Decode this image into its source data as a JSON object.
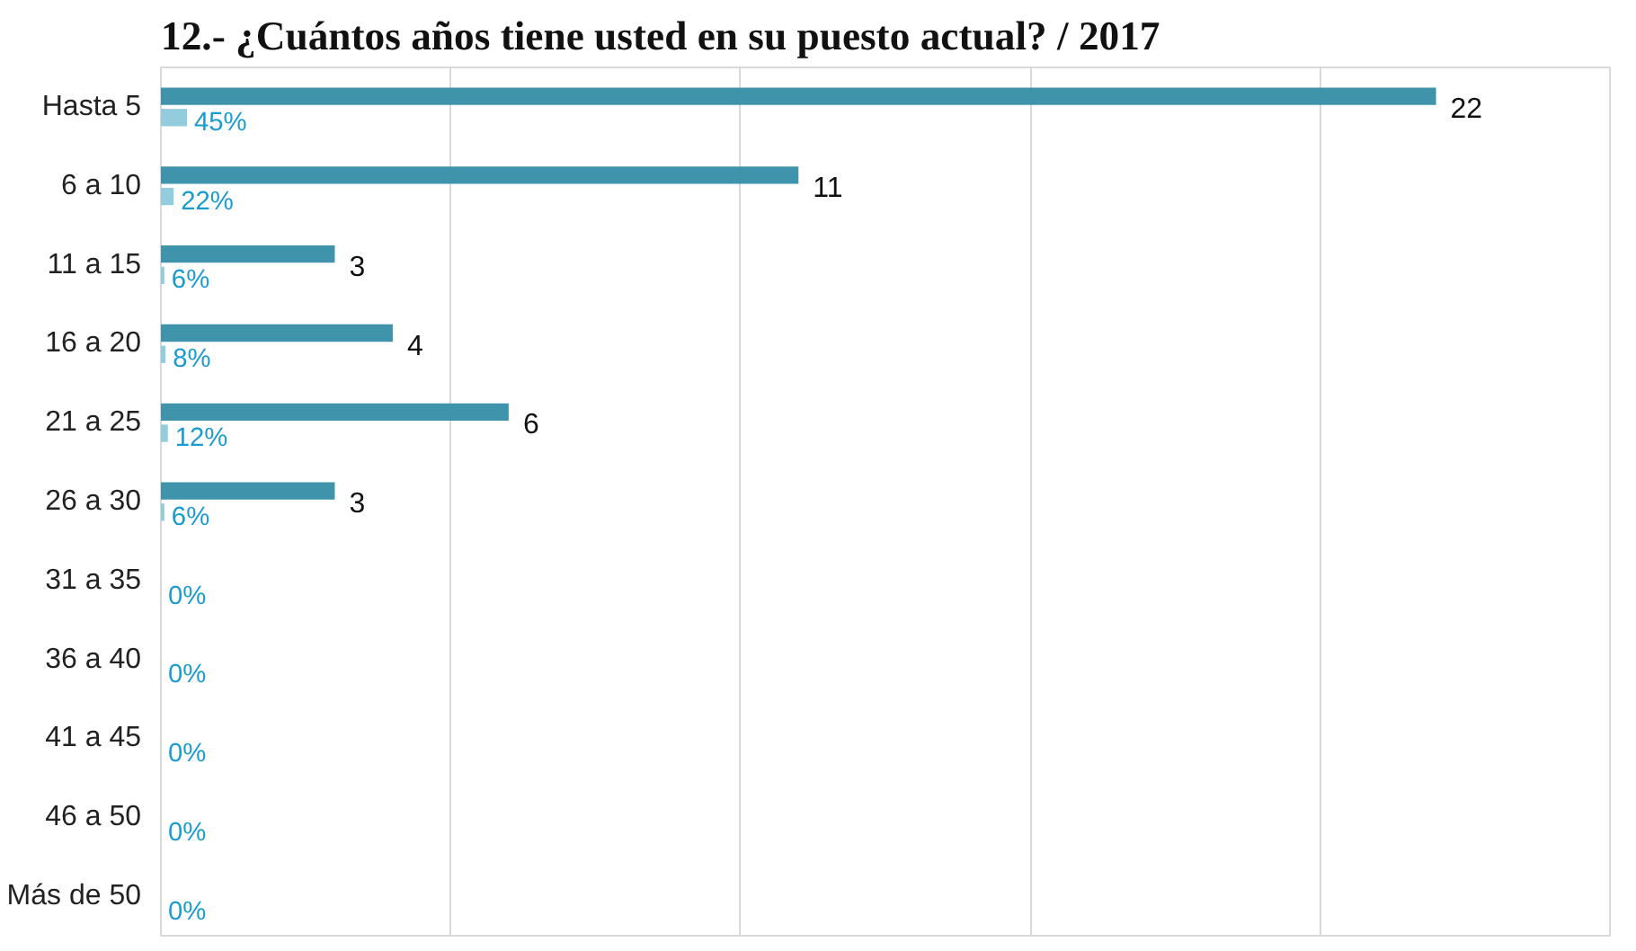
{
  "chart_data": {
    "type": "bar",
    "orientation": "horizontal",
    "title": "12.- ¿Cuántos años tiene usted en su puesto actual?   /   2017",
    "categories": [
      "Hasta 5",
      "6 a 10",
      "11 a 15",
      "16 a 20",
      "21 a 25",
      "26 a 30",
      "31 a 35",
      "36 a 40",
      "41 a 45",
      "46 a 50",
      "Más de 50"
    ],
    "series": [
      {
        "color": "#3f93ab",
        "values": [
          22,
          11,
          3,
          4,
          6,
          3,
          0,
          0,
          0,
          0,
          0
        ],
        "value_labels": [
          "22",
          "11",
          "3",
          "4",
          "6",
          "3",
          null,
          null,
          null,
          null,
          null
        ]
      },
      {
        "color": "#93cddd",
        "values": [
          0.45,
          0.22,
          0.06,
          0.08,
          0.12,
          0.06,
          0,
          0,
          0,
          0,
          0
        ],
        "value_labels": [
          "45%",
          "22%",
          "6%",
          "8%",
          "12%",
          "6%",
          "0%",
          "0%",
          "0%",
          "0%",
          "0%"
        ]
      }
    ],
    "xlim": [
      0,
      25
    ],
    "xticks": [
      {
        "value": 0,
        "label": null
      },
      {
        "value": 5,
        "label": null
      },
      {
        "value": 10,
        "label": null
      },
      {
        "value": 15,
        "label": null
      },
      {
        "value": 20,
        "label": null
      }
    ],
    "grid": "x",
    "tick_labels": "y"
  }
}
